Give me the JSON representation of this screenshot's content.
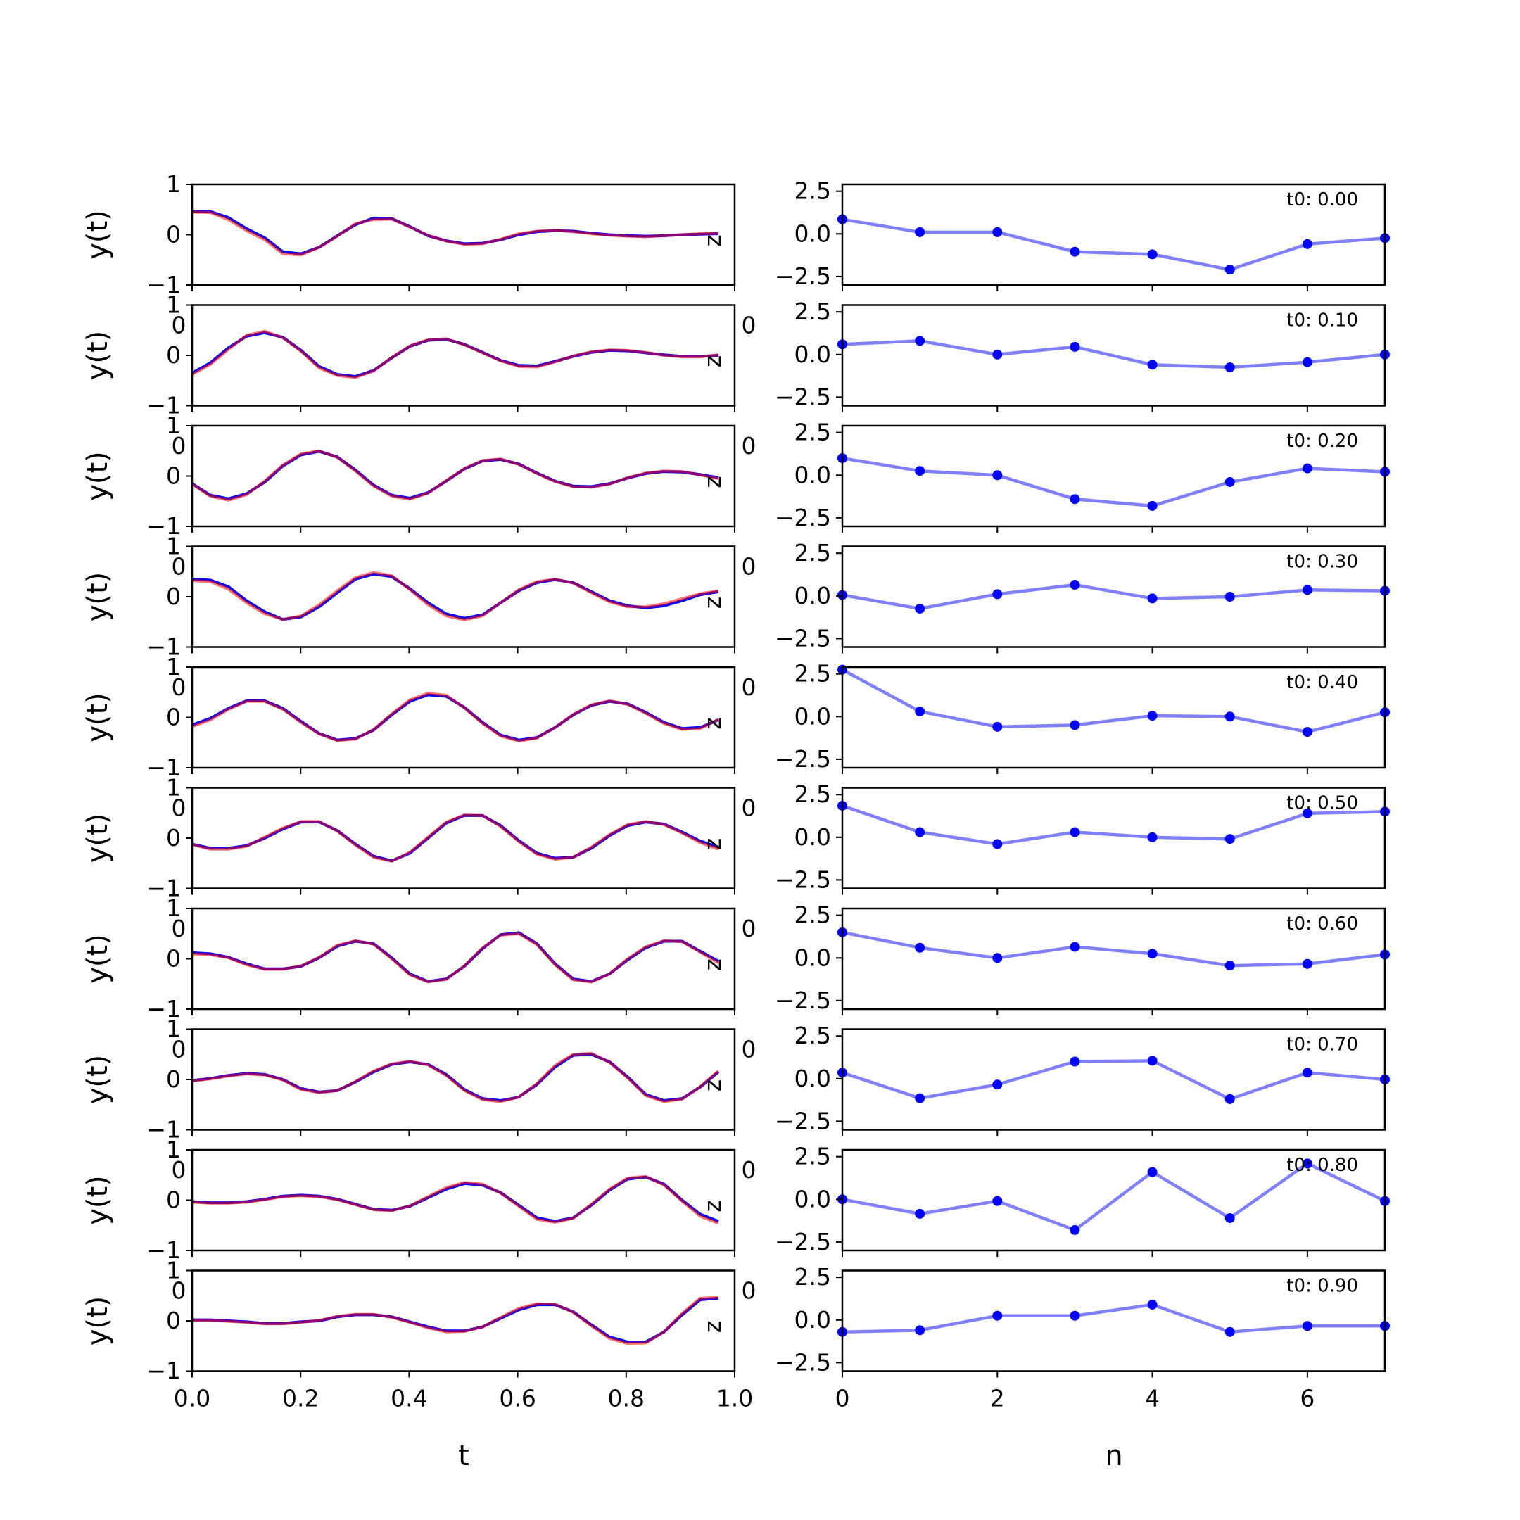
{
  "colors": {
    "truth": "#0000ff",
    "recon": "#ff0000",
    "coef_line": "#8080ff",
    "coef_marker": "#0000ff",
    "axes": "#000000"
  },
  "left_axes": {
    "ylabel": "y(t)",
    "xlabel": "t",
    "xlim": [
      0,
      1
    ],
    "ylim": [
      -1,
      1
    ],
    "xticks": [
      "0.0",
      "0.2",
      "0.4",
      "0.6",
      "0.8",
      "1.0"
    ],
    "xtick_values": [
      0,
      0.2,
      0.4,
      0.6,
      0.8,
      1.0
    ],
    "yticks": [
      "1",
      "0",
      "−1"
    ],
    "ytick_values": [
      1,
      0,
      -1
    ],
    "right_label": "z",
    "stray_tick_label": "0"
  },
  "right_axes": {
    "xlabel": "n",
    "xlim": [
      0,
      7
    ],
    "ylim": [
      -3,
      2.9
    ],
    "xticks": [
      "0",
      "2",
      "4",
      "6"
    ],
    "xtick_values": [
      0,
      2,
      4,
      6
    ],
    "yticks": [
      "2.5",
      "0.0",
      "−2.5"
    ],
    "ytick_values": [
      2.5,
      0,
      -2.5
    ],
    "stray_tick_label": "0"
  },
  "chart_data": [
    {
      "type": "line",
      "panel": "left",
      "row": 0,
      "series": [
        {
          "values": [
            0.46,
            0.46,
            0.34,
            0.12,
            -0.06,
            -0.34,
            -0.38,
            -0.25,
            -0.02,
            0.2,
            0.33,
            0.32,
            0.16,
            -0.02,
            -0.12,
            -0.18,
            -0.17,
            -0.1,
            0.0,
            0.06,
            0.08,
            0.07,
            0.03,
            0.0,
            -0.02,
            -0.03,
            -0.02,
            0.0,
            0.01,
            0.02
          ]
        },
        {
          "values": [
            0.45,
            0.44,
            0.3,
            0.08,
            -0.1,
            -0.38,
            -0.4,
            -0.25,
            -0.03,
            0.22,
            0.3,
            0.31,
            0.15,
            -0.01,
            -0.13,
            -0.19,
            -0.18,
            -0.09,
            0.02,
            0.07,
            0.09,
            0.06,
            0.02,
            -0.01,
            -0.03,
            -0.04,
            -0.02,
            0.0,
            0.02,
            0.03
          ]
        }
      ]
    },
    {
      "type": "line",
      "panel": "left",
      "row": 1,
      "series": [
        {
          "values": [
            -0.35,
            -0.15,
            0.15,
            0.38,
            0.45,
            0.36,
            0.1,
            -0.22,
            -0.38,
            -0.42,
            -0.3,
            -0.05,
            0.18,
            0.3,
            0.32,
            0.22,
            0.06,
            -0.1,
            -0.2,
            -0.21,
            -0.12,
            -0.02,
            0.06,
            0.1,
            0.09,
            0.05,
            0.01,
            -0.02,
            -0.02,
            0.0
          ]
        },
        {
          "values": [
            -0.38,
            -0.18,
            0.12,
            0.4,
            0.48,
            0.35,
            0.08,
            -0.25,
            -0.4,
            -0.44,
            -0.31,
            -0.04,
            0.19,
            0.31,
            0.33,
            0.21,
            0.05,
            -0.11,
            -0.22,
            -0.23,
            -0.13,
            -0.01,
            0.07,
            0.11,
            0.1,
            0.06,
            0.0,
            -0.03,
            -0.03,
            0.01
          ]
        }
      ]
    },
    {
      "type": "line",
      "panel": "left",
      "row": 2,
      "series": [
        {
          "values": [
            -0.15,
            -0.38,
            -0.45,
            -0.35,
            -0.12,
            0.2,
            0.42,
            0.49,
            0.38,
            0.12,
            -0.18,
            -0.38,
            -0.44,
            -0.33,
            -0.1,
            0.14,
            0.3,
            0.33,
            0.24,
            0.06,
            -0.1,
            -0.2,
            -0.21,
            -0.15,
            -0.04,
            0.05,
            0.09,
            0.08,
            0.03,
            -0.03
          ]
        },
        {
          "values": [
            -0.16,
            -0.4,
            -0.48,
            -0.37,
            -0.1,
            0.22,
            0.44,
            0.5,
            0.37,
            0.1,
            -0.2,
            -0.4,
            -0.46,
            -0.34,
            -0.09,
            0.15,
            0.31,
            0.34,
            0.23,
            0.05,
            -0.11,
            -0.21,
            -0.22,
            -0.16,
            -0.03,
            0.06,
            0.1,
            0.09,
            0.02,
            -0.05
          ]
        }
      ]
    },
    {
      "type": "line",
      "panel": "left",
      "row": 3,
      "series": [
        {
          "values": [
            0.35,
            0.33,
            0.2,
            -0.08,
            -0.3,
            -0.45,
            -0.4,
            -0.2,
            0.08,
            0.35,
            0.45,
            0.4,
            0.16,
            -0.12,
            -0.34,
            -0.43,
            -0.36,
            -0.12,
            0.12,
            0.28,
            0.34,
            0.28,
            0.1,
            -0.08,
            -0.18,
            -0.22,
            -0.18,
            -0.08,
            0.04,
            0.1
          ]
        },
        {
          "values": [
            0.32,
            0.3,
            0.15,
            -0.12,
            -0.34,
            -0.45,
            -0.38,
            -0.16,
            0.12,
            0.38,
            0.48,
            0.42,
            0.14,
            -0.16,
            -0.38,
            -0.46,
            -0.38,
            -0.12,
            0.14,
            0.3,
            0.35,
            0.27,
            0.08,
            -0.1,
            -0.2,
            -0.2,
            -0.14,
            -0.04,
            0.06,
            0.12
          ]
        }
      ]
    },
    {
      "type": "line",
      "panel": "left",
      "row": 4,
      "series": [
        {
          "values": [
            -0.15,
            -0.02,
            0.18,
            0.33,
            0.33,
            0.18,
            -0.08,
            -0.32,
            -0.45,
            -0.42,
            -0.25,
            0.05,
            0.32,
            0.45,
            0.42,
            0.2,
            -0.1,
            -0.35,
            -0.45,
            -0.4,
            -0.2,
            0.05,
            0.24,
            0.32,
            0.27,
            0.1,
            -0.1,
            -0.22,
            -0.2,
            -0.05
          ]
        },
        {
          "values": [
            -0.18,
            -0.05,
            0.16,
            0.32,
            0.32,
            0.16,
            -0.1,
            -0.33,
            -0.46,
            -0.43,
            -0.24,
            0.07,
            0.35,
            0.48,
            0.44,
            0.19,
            -0.12,
            -0.37,
            -0.47,
            -0.41,
            -0.2,
            0.06,
            0.25,
            0.33,
            0.26,
            0.08,
            -0.12,
            -0.24,
            -0.22,
            -0.04
          ]
        }
      ]
    },
    {
      "type": "line",
      "panel": "left",
      "row": 5,
      "series": [
        {
          "values": [
            -0.12,
            -0.2,
            -0.2,
            -0.15,
            0.0,
            0.18,
            0.32,
            0.32,
            0.15,
            -0.12,
            -0.36,
            -0.45,
            -0.3,
            0.0,
            0.3,
            0.45,
            0.45,
            0.25,
            -0.05,
            -0.3,
            -0.4,
            -0.38,
            -0.2,
            0.05,
            0.25,
            0.32,
            0.28,
            0.12,
            -0.06,
            -0.18
          ]
        },
        {
          "values": [
            -0.13,
            -0.22,
            -0.22,
            -0.16,
            0.02,
            0.2,
            0.33,
            0.33,
            0.14,
            -0.14,
            -0.38,
            -0.46,
            -0.28,
            0.02,
            0.32,
            0.46,
            0.45,
            0.23,
            -0.07,
            -0.32,
            -0.42,
            -0.38,
            -0.18,
            0.07,
            0.27,
            0.33,
            0.27,
            0.1,
            -0.09,
            -0.22
          ]
        }
      ]
    },
    {
      "type": "line",
      "panel": "left",
      "row": 6,
      "series": [
        {
          "values": [
            0.12,
            0.1,
            0.03,
            -0.1,
            -0.2,
            -0.2,
            -0.15,
            0.02,
            0.25,
            0.35,
            0.3,
            0.02,
            -0.3,
            -0.45,
            -0.4,
            -0.15,
            0.2,
            0.48,
            0.52,
            0.3,
            -0.1,
            -0.4,
            -0.45,
            -0.3,
            -0.02,
            0.22,
            0.35,
            0.35,
            0.15,
            -0.05
          ]
        },
        {
          "values": [
            0.1,
            0.08,
            0.02,
            -0.12,
            -0.21,
            -0.21,
            -0.14,
            0.03,
            0.27,
            0.36,
            0.29,
            0.0,
            -0.32,
            -0.46,
            -0.41,
            -0.14,
            0.22,
            0.47,
            0.5,
            0.28,
            -0.12,
            -0.42,
            -0.46,
            -0.3,
            0.0,
            0.24,
            0.36,
            0.34,
            0.13,
            -0.08
          ]
        }
      ]
    },
    {
      "type": "line",
      "panel": "left",
      "row": 7,
      "series": [
        {
          "values": [
            -0.02,
            0.02,
            0.08,
            0.12,
            0.1,
            0.0,
            -0.18,
            -0.25,
            -0.22,
            -0.05,
            0.15,
            0.3,
            0.35,
            0.3,
            0.1,
            -0.2,
            -0.38,
            -0.42,
            -0.35,
            -0.1,
            0.25,
            0.48,
            0.5,
            0.35,
            0.05,
            -0.3,
            -0.42,
            -0.38,
            -0.15,
            0.15
          ]
        },
        {
          "values": [
            -0.03,
            0.01,
            0.07,
            0.11,
            0.09,
            -0.01,
            -0.2,
            -0.26,
            -0.22,
            -0.04,
            0.17,
            0.31,
            0.36,
            0.29,
            0.08,
            -0.22,
            -0.4,
            -0.44,
            -0.35,
            -0.08,
            0.28,
            0.5,
            0.52,
            0.34,
            0.03,
            -0.32,
            -0.44,
            -0.39,
            -0.14,
            0.17
          ]
        }
      ]
    },
    {
      "type": "line",
      "panel": "left",
      "row": 8,
      "series": [
        {
          "values": [
            -0.03,
            -0.05,
            -0.05,
            -0.03,
            0.02,
            0.08,
            0.1,
            0.08,
            0.02,
            -0.08,
            -0.18,
            -0.2,
            -0.12,
            0.05,
            0.22,
            0.33,
            0.3,
            0.15,
            -0.1,
            -0.35,
            -0.42,
            -0.35,
            -0.1,
            0.2,
            0.42,
            0.46,
            0.32,
            0.0,
            -0.28,
            -0.42
          ]
        },
        {
          "values": [
            -0.04,
            -0.06,
            -0.06,
            -0.04,
            0.01,
            0.07,
            0.09,
            0.07,
            0.01,
            -0.09,
            -0.19,
            -0.21,
            -0.11,
            0.07,
            0.25,
            0.35,
            0.32,
            0.14,
            -0.12,
            -0.38,
            -0.44,
            -0.36,
            -0.08,
            0.22,
            0.44,
            0.47,
            0.3,
            -0.02,
            -0.32,
            -0.46
          ]
        }
      ]
    },
    {
      "type": "line",
      "panel": "left",
      "row": 9,
      "series": [
        {
          "values": [
            0.02,
            0.02,
            0.0,
            -0.02,
            -0.05,
            -0.05,
            -0.02,
            0.0,
            0.08,
            0.12,
            0.12,
            0.08,
            -0.02,
            -0.12,
            -0.2,
            -0.2,
            -0.12,
            0.05,
            0.22,
            0.32,
            0.32,
            0.18,
            -0.08,
            -0.32,
            -0.42,
            -0.42,
            -0.22,
            0.12,
            0.42,
            0.45
          ]
        },
        {
          "values": [
            0.01,
            0.01,
            -0.01,
            -0.03,
            -0.06,
            -0.06,
            -0.03,
            0.01,
            0.09,
            0.13,
            0.13,
            0.07,
            -0.03,
            -0.14,
            -0.22,
            -0.21,
            -0.12,
            0.07,
            0.25,
            0.34,
            0.33,
            0.17,
            -0.1,
            -0.35,
            -0.45,
            -0.44,
            -0.22,
            0.15,
            0.45,
            0.47
          ]
        }
      ]
    },
    {
      "type": "line",
      "panel": "right",
      "row": 0,
      "annotation": "t0: 0.00",
      "x": [
        0,
        1,
        2,
        3,
        4,
        5,
        6,
        7
      ],
      "values": [
        0.85,
        0.1,
        0.1,
        -1.05,
        -1.2,
        -2.1,
        -0.6,
        -0.25
      ]
    },
    {
      "type": "line",
      "panel": "right",
      "row": 1,
      "annotation": "t0: 0.10",
      "x": [
        0,
        1,
        2,
        3,
        4,
        5,
        6,
        7
      ],
      "values": [
        0.6,
        0.8,
        0.0,
        0.45,
        -0.6,
        -0.75,
        -0.45,
        0.0
      ]
    },
    {
      "type": "line",
      "panel": "right",
      "row": 2,
      "annotation": "t0: 0.20",
      "x": [
        0,
        1,
        2,
        3,
        4,
        5,
        6,
        7
      ],
      "values": [
        1.0,
        0.25,
        0.0,
        -1.4,
        -1.8,
        -0.4,
        0.4,
        0.2
      ]
    },
    {
      "type": "line",
      "panel": "right",
      "row": 3,
      "annotation": "t0: 0.30",
      "x": [
        0,
        1,
        2,
        3,
        4,
        5,
        6,
        7
      ],
      "values": [
        0.05,
        -0.75,
        0.1,
        0.65,
        -0.15,
        -0.05,
        0.35,
        0.3
      ]
    },
    {
      "type": "line",
      "panel": "right",
      "row": 4,
      "annotation": "t0: 0.40",
      "x": [
        0,
        1,
        2,
        3,
        4,
        5,
        6,
        7
      ],
      "values": [
        2.75,
        0.3,
        -0.6,
        -0.5,
        0.05,
        0.0,
        -0.9,
        0.25
      ]
    },
    {
      "type": "line",
      "panel": "right",
      "row": 5,
      "annotation": "t0: 0.50",
      "x": [
        0,
        1,
        2,
        3,
        4,
        5,
        6,
        7
      ],
      "values": [
        1.85,
        0.3,
        -0.4,
        0.3,
        0.0,
        -0.1,
        1.4,
        1.5
      ]
    },
    {
      "type": "line",
      "panel": "right",
      "row": 6,
      "annotation": "t0: 0.60",
      "x": [
        0,
        1,
        2,
        3,
        4,
        5,
        6,
        7
      ],
      "values": [
        1.5,
        0.6,
        0.0,
        0.65,
        0.25,
        -0.45,
        -0.35,
        0.2
      ]
    },
    {
      "type": "line",
      "panel": "right",
      "row": 7,
      "annotation": "t0: 0.70",
      "x": [
        0,
        1,
        2,
        3,
        4,
        5,
        6,
        7
      ],
      "values": [
        0.35,
        -1.15,
        -0.35,
        1.0,
        1.05,
        -1.2,
        0.35,
        -0.05
      ]
    },
    {
      "type": "line",
      "panel": "right",
      "row": 8,
      "annotation": "t0: 0.80",
      "x": [
        0,
        1,
        2,
        3,
        4,
        5,
        6,
        7
      ],
      "values": [
        0.0,
        -0.85,
        -0.1,
        -1.8,
        1.6,
        -1.1,
        2.1,
        -0.1
      ]
    },
    {
      "type": "line",
      "panel": "right",
      "row": 9,
      "annotation": "t0: 0.90",
      "x": [
        0,
        1,
        2,
        3,
        4,
        5,
        6,
        7
      ],
      "values": [
        -0.7,
        -0.6,
        0.25,
        0.25,
        0.9,
        -0.7,
        -0.35,
        -0.35
      ]
    }
  ]
}
